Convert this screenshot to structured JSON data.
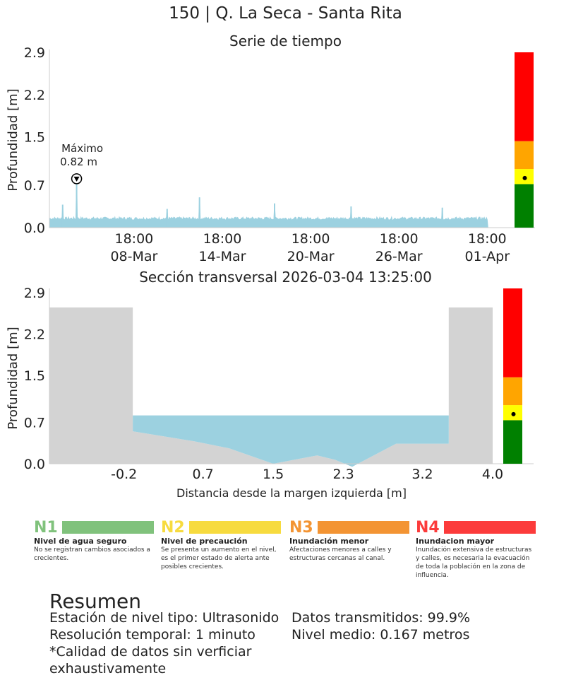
{
  "title": "150 | Q. La Seca - Santa Rita",
  "timeseries_title": "Serie de tiempo",
  "cross_title": "Sección transversal 2026-03-04 13:25:00",
  "max_annotation": {
    "label": "Máximo",
    "value": "0.82 m"
  },
  "chart_data": [
    {
      "type": "area",
      "title": "Serie de tiempo",
      "ylabel": "Profundidad [m]",
      "ylim": [
        0,
        2.9
      ],
      "yticks": [
        "0.0",
        "0.7",
        "1.5",
        "2.2",
        "2.9"
      ],
      "xticks": [
        {
          "time": "18:00",
          "date": "08-Mar"
        },
        {
          "time": "18:00",
          "date": "14-Mar"
        },
        {
          "time": "18:00",
          "date": "20-Mar"
        },
        {
          "time": "18:00",
          "date": "26-Mar"
        },
        {
          "time": "18:00",
          "date": "01-Apr"
        }
      ],
      "x_days_range": [
        0,
        30.6
      ],
      "series_color": "#9cd1e0",
      "baseline": 0.15,
      "spikes": [
        {
          "day": 0.9,
          "depth": 0.38
        },
        {
          "day": 1.85,
          "depth": 0.82
        },
        {
          "day": 8.0,
          "depth": 0.31
        },
        {
          "day": 10.2,
          "depth": 0.5
        },
        {
          "day": 15.3,
          "depth": 0.4
        },
        {
          "day": 20.5,
          "depth": 0.35
        },
        {
          "day": 26.7,
          "depth": 0.33
        }
      ],
      "grid": false
    },
    {
      "type": "area",
      "title": "Sección transversal 2026-03-04 13:25:00",
      "xlabel": "Distancia desde la margen izquierda [m]",
      "ylabel": "Profundidad [m]",
      "ylim": [
        0,
        2.9
      ],
      "yticks": [
        "0.0",
        "0.7",
        "1.5",
        "2.2",
        "2.9"
      ],
      "xticks": [
        "-0.2",
        "0.7",
        "1.5",
        "2.3",
        "3.2",
        "4.0"
      ],
      "xtick_values": [
        -0.2,
        0.7,
        1.5,
        2.3,
        3.2,
        4.0
      ],
      "xlim": [
        -1.05,
        4.0
      ],
      "water_level": 0.82,
      "bank_height": 2.65,
      "bed_profile": [
        [
          -0.1,
          0.55
        ],
        [
          0.6,
          0.38
        ],
        [
          1.0,
          0.26
        ],
        [
          1.5,
          0.0
        ],
        [
          2.0,
          0.14
        ],
        [
          2.2,
          0.07
        ],
        [
          2.4,
          -0.05
        ],
        [
          2.9,
          0.34
        ],
        [
          3.5,
          0.34
        ]
      ],
      "left_bank_x": -0.1,
      "right_bank_x": 3.5,
      "water_color": "#9cd1e0",
      "ground_color": "#d3d3d3"
    }
  ],
  "alert_gauge": {
    "levels": [
      {
        "from": 0.0,
        "to": 0.72,
        "color": "#008000"
      },
      {
        "from": 0.72,
        "to": 0.97,
        "color": "#ffff00"
      },
      {
        "from": 0.97,
        "to": 1.43,
        "color": "#ffa500"
      },
      {
        "from": 1.43,
        "to": 2.9,
        "color": "#ff0000"
      }
    ],
    "current": 0.82
  },
  "legend": [
    {
      "code": "N1",
      "color": "#80c27c",
      "name": "Nivel de agua seguro",
      "desc": "No se registran cambios asociados a crecientes."
    },
    {
      "code": "N2",
      "color": "#f7db3f",
      "name": "Nivel de precaución",
      "desc": "Se presenta un aumento en el nivel, es el primer estado de alerta ante posibles crecientes."
    },
    {
      "code": "N3",
      "color": "#f39433",
      "name": "Inundación menor",
      "desc": "Afectaciones menores a calles y estructuras cercanas al canal."
    },
    {
      "code": "N4",
      "color": "#fc3b3b",
      "name": "Inundacion mayor",
      "desc": "Inundación extensiva de estructuras y calles, es necesaria la evacuación de toda la población en la zona de influencia."
    }
  ],
  "summary": {
    "heading": "Resumen",
    "station_type": "Estación de nivel tipo: Ultrasonido",
    "resolution": "Resolución temporal: 1 minuto",
    "quality_line1": "*Calidad de datos sin verficiar",
    "quality_line2": "exhaustivamente",
    "transmitted": "Datos transmitidos: 99.9%",
    "mean_level": "Nivel medio: 0.167 metros"
  }
}
